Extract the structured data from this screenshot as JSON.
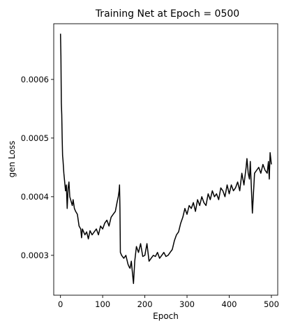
{
  "chart_data": {
    "type": "line",
    "title": "Training Net at Epoch = 0500",
    "xlabel": "Epoch",
    "ylabel": "gen Loss",
    "xlim": [
      -16,
      515
    ],
    "ylim": [
      0.000232,
      0.000695
    ],
    "xticks": [
      0,
      100,
      200,
      300,
      400,
      500
    ],
    "xtick_labels": [
      "0",
      "100",
      "200",
      "300",
      "400",
      "500"
    ],
    "yticks": [
      0.0003,
      0.0004,
      0.0005,
      0.0006
    ],
    "ytick_labels": [
      "0.0003",
      "0.0004",
      "0.0005",
      "0.0006"
    ],
    "grid": false,
    "series": [
      {
        "color": "#000000",
        "x": [
          0,
          1,
          2,
          3,
          4,
          5,
          6,
          8,
          10,
          12,
          14,
          16,
          18,
          20,
          22,
          24,
          26,
          28,
          30,
          33,
          36,
          40,
          44,
          48,
          50,
          52,
          55,
          58,
          62,
          66,
          70,
          75,
          80,
          85,
          90,
          95,
          100,
          105,
          110,
          115,
          120,
          125,
          130,
          134,
          137,
          139,
          140,
          141,
          142,
          145,
          150,
          155,
          160,
          163,
          165,
          168,
          170,
          173,
          176,
          180,
          185,
          190,
          195,
          200,
          205,
          210,
          215,
          220,
          225,
          230,
          235,
          240,
          245,
          250,
          255,
          260,
          265,
          270,
          275,
          280,
          285,
          290,
          295,
          300,
          305,
          310,
          315,
          320,
          325,
          330,
          335,
          340,
          345,
          350,
          355,
          360,
          365,
          370,
          375,
          380,
          385,
          390,
          395,
          400,
          405,
          410,
          415,
          420,
          425,
          430,
          435,
          440,
          442,
          445,
          448,
          450,
          455,
          460,
          465,
          470,
          475,
          480,
          485,
          490,
          493,
          495,
          497,
          500
        ],
        "y": [
          0.000678,
          0.00064,
          0.00056,
          0.00054,
          0.0005,
          0.00047,
          0.000462,
          0.00044,
          0.000425,
          0.00041,
          0.00042,
          0.00038,
          0.000415,
          0.000425,
          0.0004,
          0.000395,
          0.00039,
          0.000385,
          0.000395,
          0.00038,
          0.000375,
          0.00037,
          0.00035,
          0.000345,
          0.00033,
          0.000345,
          0.00034,
          0.000335,
          0.00034,
          0.000328,
          0.000342,
          0.000335,
          0.00034,
          0.000345,
          0.000335,
          0.00035,
          0.000345,
          0.000355,
          0.00036,
          0.00035,
          0.000365,
          0.00037,
          0.000375,
          0.00039,
          0.0004,
          0.00041,
          0.00042,
          0.00038,
          0.000305,
          0.0003,
          0.000295,
          0.0003,
          0.000285,
          0.00028,
          0.000278,
          0.00029,
          0.000275,
          0.000252,
          0.00029,
          0.000315,
          0.000305,
          0.00032,
          0.000298,
          0.0003,
          0.00032,
          0.00029,
          0.000295,
          0.0003,
          0.000298,
          0.000305,
          0.000295,
          0.0003,
          0.000305,
          0.000298,
          0.0003,
          0.000305,
          0.00031,
          0.000325,
          0.000335,
          0.00034,
          0.000355,
          0.000365,
          0.00038,
          0.00037,
          0.000385,
          0.00038,
          0.00039,
          0.000375,
          0.000395,
          0.000385,
          0.0004,
          0.00039,
          0.000385,
          0.000405,
          0.000395,
          0.00041,
          0.0004,
          0.000405,
          0.000395,
          0.000415,
          0.00041,
          0.0004,
          0.00042,
          0.000405,
          0.00042,
          0.00041,
          0.000415,
          0.000425,
          0.00041,
          0.00044,
          0.00042,
          0.00045,
          0.000465,
          0.00044,
          0.00043,
          0.00046,
          0.000372,
          0.00044,
          0.000445,
          0.00045,
          0.00044,
          0.000455,
          0.000445,
          0.00044,
          0.00046,
          0.00043,
          0.000475,
          0.000455
        ]
      }
    ]
  }
}
